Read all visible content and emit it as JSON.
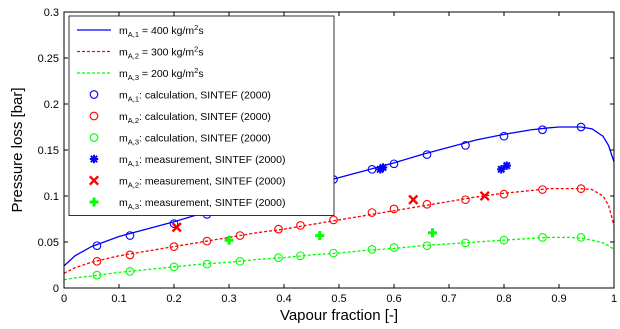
{
  "chart_data": {
    "type": "line",
    "xlabel": "Vapour fraction [-]",
    "ylabel": "Pressure loss [bar]",
    "xlim": [
      0,
      1
    ],
    "ylim": [
      0,
      0.3
    ],
    "xticks": [
      "0",
      "0.1",
      "0.2",
      "0.3",
      "0.4",
      "0.5",
      "0.6",
      "0.7",
      "0.8",
      "0.9",
      "1"
    ],
    "yticks": [
      "0",
      "0.05",
      "0.1",
      "0.15",
      "0.2",
      "0.25",
      "0.3"
    ],
    "grid": false,
    "legend_position": "top-left",
    "series": [
      {
        "name": "m_A,1 = 400 kg/m^2s",
        "legend": {
          "pre": "m",
          "sub": "A,1",
          "post": " = 400 kg/m",
          "sup": "2",
          "tail": "s"
        },
        "kind": "line",
        "style": "solid",
        "color": "#0000ff",
        "x": [
          0,
          0.02,
          0.05,
          0.1,
          0.15,
          0.2,
          0.25,
          0.3,
          0.35,
          0.4,
          0.45,
          0.5,
          0.55,
          0.6,
          0.65,
          0.7,
          0.75,
          0.8,
          0.85,
          0.88,
          0.9,
          0.92,
          0.94,
          0.96,
          0.98,
          0.99,
          1.0
        ],
        "y": [
          0.024,
          0.035,
          0.045,
          0.056,
          0.064,
          0.072,
          0.081,
          0.089,
          0.097,
          0.105,
          0.112,
          0.12,
          0.128,
          0.136,
          0.145,
          0.153,
          0.161,
          0.167,
          0.172,
          0.174,
          0.175,
          0.175,
          0.175,
          0.173,
          0.165,
          0.155,
          0.137
        ]
      },
      {
        "name": "m_A,2 = 300 kg/m^2s",
        "legend": {
          "pre": "m",
          "sub": "A,2",
          "post": " = 300 kg/m",
          "sup": "2",
          "tail": "s"
        },
        "kind": "line",
        "style": "dashed",
        "color": "#ff0000",
        "x": [
          0,
          0.02,
          0.05,
          0.1,
          0.15,
          0.2,
          0.25,
          0.3,
          0.35,
          0.4,
          0.45,
          0.5,
          0.55,
          0.6,
          0.65,
          0.7,
          0.75,
          0.8,
          0.85,
          0.88,
          0.9,
          0.92,
          0.94,
          0.96,
          0.98,
          0.99,
          1.0
        ],
        "y": [
          0.016,
          0.022,
          0.028,
          0.035,
          0.04,
          0.045,
          0.05,
          0.055,
          0.06,
          0.064,
          0.069,
          0.074,
          0.079,
          0.084,
          0.089,
          0.094,
          0.099,
          0.103,
          0.106,
          0.108,
          0.108,
          0.108,
          0.108,
          0.107,
          0.1,
          0.09,
          0.068
        ]
      },
      {
        "name": "m_A,3 = 200 kg/m^2s",
        "legend": {
          "pre": "m",
          "sub": "A,3",
          "post": " = 200 kg/m",
          "sup": "2",
          "tail": "s"
        },
        "kind": "line",
        "style": "dashed",
        "color": "#00ff00",
        "x": [
          0,
          0.02,
          0.05,
          0.1,
          0.15,
          0.2,
          0.25,
          0.3,
          0.35,
          0.4,
          0.45,
          0.5,
          0.55,
          0.6,
          0.65,
          0.7,
          0.75,
          0.8,
          0.85,
          0.88,
          0.9,
          0.92,
          0.94,
          0.96,
          0.98,
          0.99,
          1.0
        ],
        "y": [
          0.009,
          0.011,
          0.013,
          0.017,
          0.02,
          0.023,
          0.026,
          0.028,
          0.031,
          0.033,
          0.036,
          0.038,
          0.041,
          0.043,
          0.046,
          0.048,
          0.05,
          0.052,
          0.054,
          0.055,
          0.055,
          0.055,
          0.054,
          0.052,
          0.049,
          0.046,
          0.042
        ]
      },
      {
        "name": "m_A,1: calculation, SINTEF (2000)",
        "legend": {
          "pre": "m",
          "sub": "A,1",
          "post": ": calculation, SINTEF (2000)"
        },
        "kind": "circle",
        "color": "#0000ff",
        "x": [
          0.06,
          0.12,
          0.2,
          0.26,
          0.32,
          0.39,
          0.43,
          0.49,
          0.56,
          0.6,
          0.66,
          0.73,
          0.8,
          0.87,
          0.94
        ],
        "y": [
          0.046,
          0.057,
          0.07,
          0.08,
          0.089,
          0.1,
          0.108,
          0.118,
          0.129,
          0.135,
          0.145,
          0.155,
          0.165,
          0.172,
          0.175
        ]
      },
      {
        "name": "m_A,2: calculation, SINTEF (2000)",
        "legend": {
          "pre": "m",
          "sub": "A,2",
          "post": ": calculation, SINTEF (2000)"
        },
        "kind": "circle",
        "color": "#ff0000",
        "x": [
          0.06,
          0.12,
          0.2,
          0.26,
          0.32,
          0.39,
          0.43,
          0.49,
          0.56,
          0.6,
          0.66,
          0.73,
          0.8,
          0.87,
          0.94
        ],
        "y": [
          0.029,
          0.036,
          0.045,
          0.051,
          0.057,
          0.064,
          0.068,
          0.074,
          0.082,
          0.086,
          0.091,
          0.096,
          0.102,
          0.107,
          0.108
        ]
      },
      {
        "name": "m_A,3: calculation, SINTEF (2000)",
        "legend": {
          "pre": "m",
          "sub": "A,3",
          "post": ": calculation, SINTEF (2000)"
        },
        "kind": "circle",
        "color": "#00ff00",
        "x": [
          0.06,
          0.12,
          0.2,
          0.26,
          0.32,
          0.39,
          0.43,
          0.49,
          0.56,
          0.6,
          0.66,
          0.73,
          0.8,
          0.87,
          0.94
        ],
        "y": [
          0.014,
          0.018,
          0.023,
          0.026,
          0.029,
          0.033,
          0.035,
          0.038,
          0.042,
          0.044,
          0.046,
          0.049,
          0.052,
          0.055,
          0.055
        ]
      },
      {
        "name": "m_A,1: measurement, SINTEF (2000)",
        "legend": {
          "pre": "m",
          "sub": "A,1",
          "post": ": measurement, SINTEF (2000)"
        },
        "kind": "asterisk",
        "color": "#0000ff",
        "x": [
          0.575,
          0.58,
          0.795,
          0.805
        ],
        "y": [
          0.129,
          0.131,
          0.129,
          0.133
        ]
      },
      {
        "name": "m_A,2: measurement, SINTEF (2000)",
        "legend": {
          "pre": "m",
          "sub": "A,2",
          "post": ": measurement, SINTEF (2000)"
        },
        "kind": "cross",
        "color": "#ff0000",
        "x": [
          0.205,
          0.635,
          0.765
        ],
        "y": [
          0.066,
          0.096,
          0.1
        ]
      },
      {
        "name": "m_A,3: measurement, SINTEF (2000)",
        "legend": {
          "pre": "m",
          "sub": "A,3",
          "post": ": measurement, SINTEF (2000)"
        },
        "kind": "plus",
        "color": "#00ff00",
        "x": [
          0.3,
          0.465,
          0.67
        ],
        "y": [
          0.052,
          0.057,
          0.06
        ]
      }
    ]
  }
}
